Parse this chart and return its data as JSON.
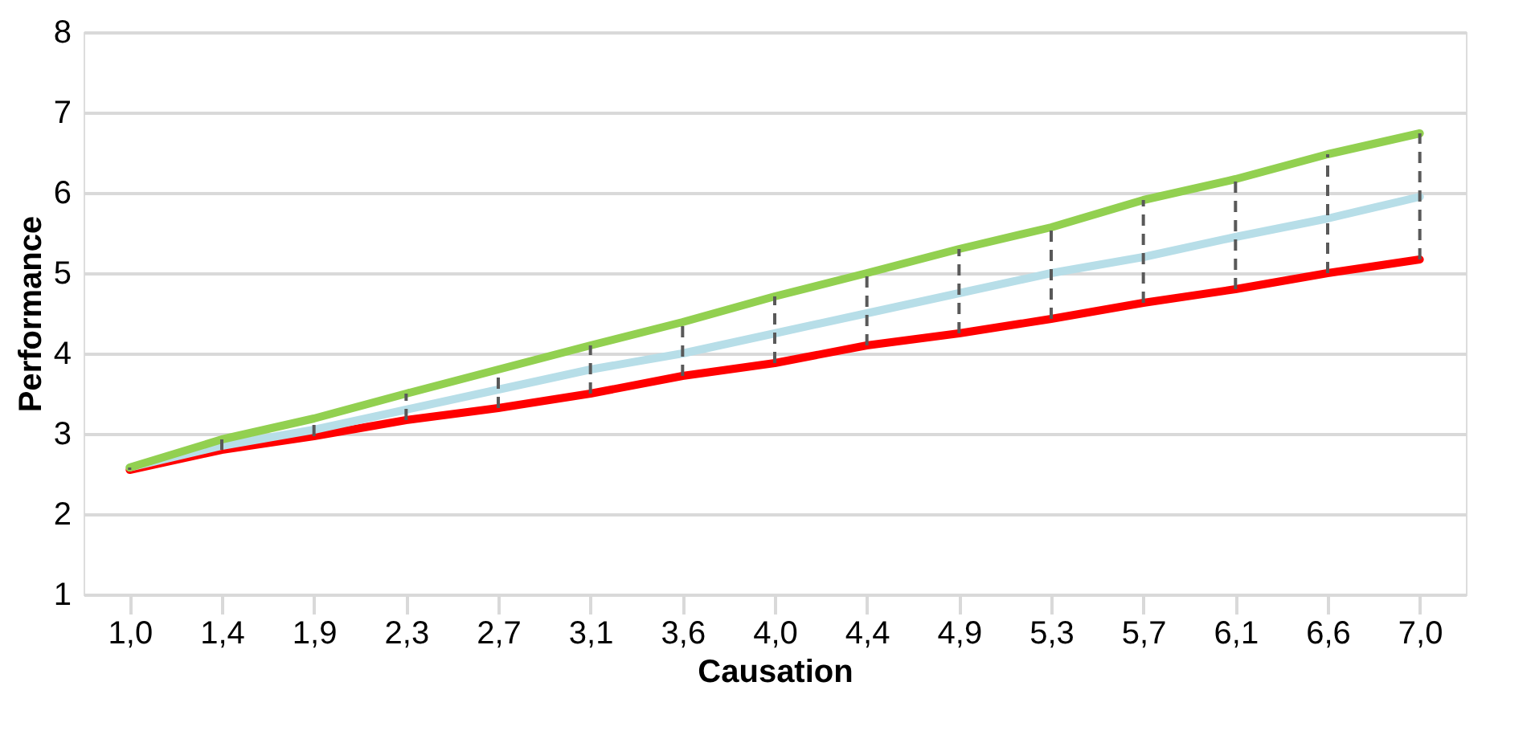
{
  "chart_data": {
    "type": "line",
    "xlabel": "Causation",
    "ylabel": "Performance",
    "categories": [
      "1,0",
      "1,4",
      "1,9",
      "2,3",
      "2,7",
      "3,1",
      "3,6",
      "4,0",
      "4,4",
      "4,9",
      "5,3",
      "5,7",
      "6,1",
      "6,6",
      "7,0"
    ],
    "series": [
      {
        "color": "#92d050",
        "values": [
          2.58,
          2.93,
          3.19,
          3.5,
          3.8,
          4.1,
          4.39,
          4.71,
          5.0,
          5.3,
          5.57,
          5.91,
          6.17,
          6.48,
          6.74
        ],
        "errors": [
          [
            2.55,
            2.58
          ],
          [
            2.8,
            2.93
          ],
          [
            2.97,
            3.19
          ],
          [
            3.17,
            3.5
          ],
          [
            3.32,
            3.8
          ],
          [
            3.5,
            4.1
          ],
          [
            3.72,
            4.39
          ],
          [
            3.88,
            4.71
          ],
          [
            4.1,
            5.0
          ],
          [
            4.25,
            5.3
          ],
          [
            4.43,
            5.57
          ],
          [
            4.63,
            5.91
          ],
          [
            4.8,
            6.17
          ],
          [
            5.0,
            6.48
          ],
          [
            5.17,
            6.74
          ]
        ]
      },
      {
        "color": "#b7dee8",
        "values": [
          2.58,
          2.85,
          3.05,
          3.3,
          3.55,
          3.8,
          4.0,
          4.25,
          4.5,
          4.75,
          5.0,
          5.2,
          5.45,
          5.68,
          5.95
        ]
      },
      {
        "color": "#ff0000",
        "values": [
          2.55,
          2.8,
          2.97,
          3.17,
          3.32,
          3.5,
          3.72,
          3.88,
          4.1,
          4.25,
          4.43,
          4.63,
          4.8,
          5.0,
          5.17
        ]
      }
    ],
    "ylim": [
      1,
      8
    ],
    "yticks": [
      1,
      2,
      3,
      4,
      5,
      6,
      7,
      8
    ],
    "grid": "y",
    "marker": "none",
    "line_style": "solid"
  }
}
